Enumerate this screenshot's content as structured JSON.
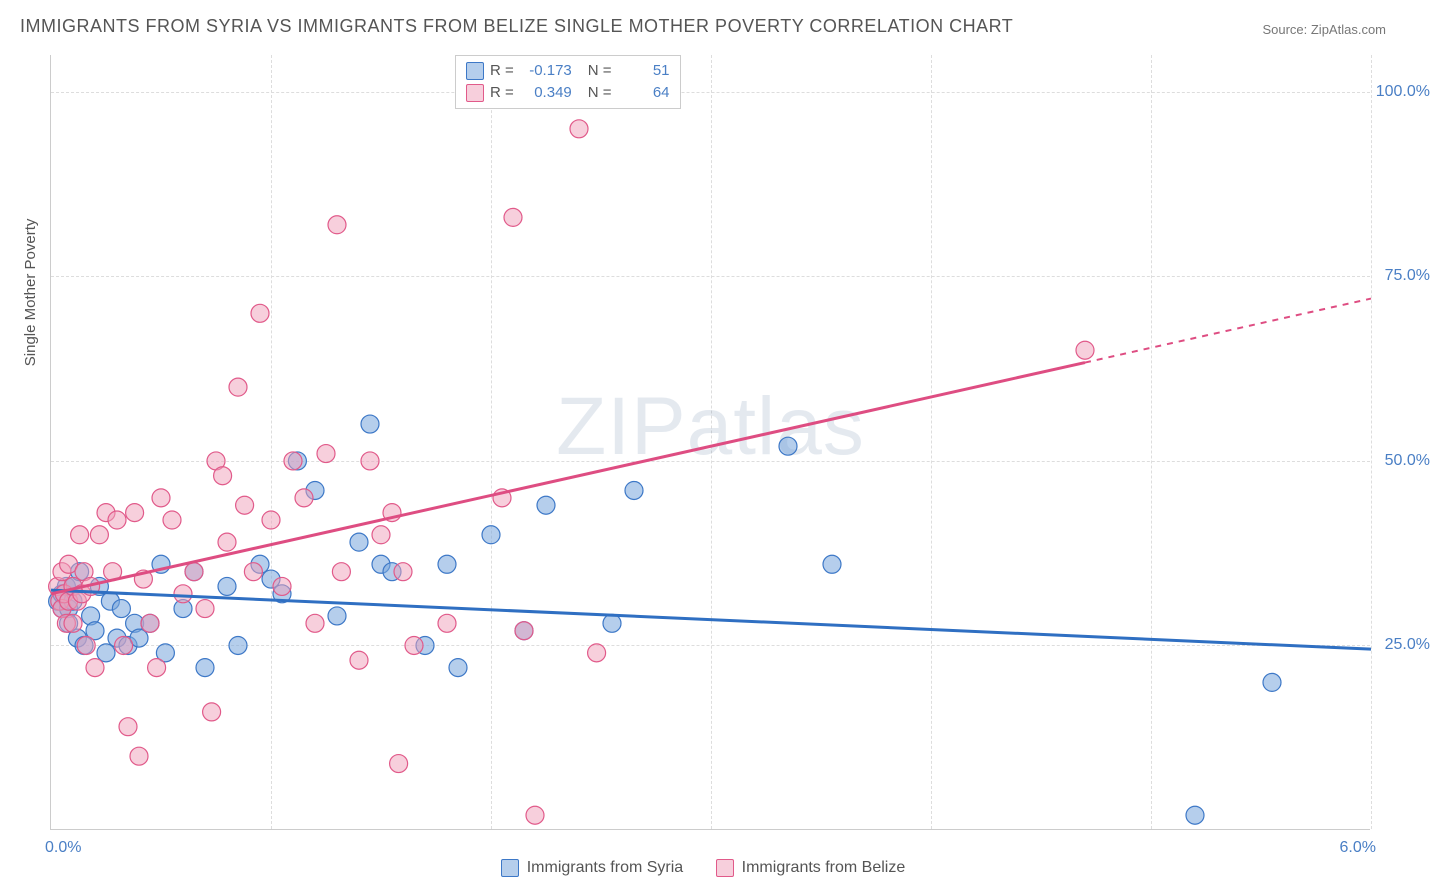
{
  "title": "IMMIGRANTS FROM SYRIA VS IMMIGRANTS FROM BELIZE SINGLE MOTHER POVERTY CORRELATION CHART",
  "source_label": "Source: ZipAtlas.com",
  "watermark": "ZIPatlas",
  "yaxis": {
    "title": "Single Mother Poverty",
    "min": 0,
    "max": 105,
    "ticks": [
      25.0,
      50.0,
      75.0,
      100.0
    ],
    "tick_labels": [
      "25.0%",
      "50.0%",
      "75.0%",
      "100.0%"
    ],
    "label_color": "#4a7fc5",
    "label_fontsize": 16
  },
  "xaxis": {
    "min": 0,
    "max": 6.0,
    "ticks": [
      0.0,
      1.0,
      2.0,
      3.0,
      4.0,
      5.0,
      6.0
    ],
    "end_labels": {
      "left": "0.0%",
      "right": "6.0%"
    },
    "label_color": "#4a7fc5",
    "label_fontsize": 16
  },
  "series": [
    {
      "name": "Immigrants from Syria",
      "color_fill": "rgba(120,165,220,0.55)",
      "color_stroke": "#3d78c7",
      "marker_radius": 9,
      "R": "-0.173",
      "N": "51",
      "trend": {
        "x1": 0.0,
        "y1": 32.5,
        "x2": 6.0,
        "y2": 24.5,
        "dash_from_x": null,
        "color": "#2f6fc2",
        "width": 3
      },
      "points": [
        [
          0.03,
          31
        ],
        [
          0.05,
          30
        ],
        [
          0.05,
          32
        ],
        [
          0.07,
          33
        ],
        [
          0.08,
          30
        ],
        [
          0.08,
          28
        ],
        [
          0.1,
          33
        ],
        [
          0.1,
          31
        ],
        [
          0.12,
          26
        ],
        [
          0.13,
          35
        ],
        [
          0.15,
          25
        ],
        [
          0.18,
          29
        ],
        [
          0.2,
          27
        ],
        [
          0.22,
          33
        ],
        [
          0.25,
          24
        ],
        [
          0.27,
          31
        ],
        [
          0.3,
          26
        ],
        [
          0.32,
          30
        ],
        [
          0.35,
          25
        ],
        [
          0.38,
          28
        ],
        [
          0.4,
          26
        ],
        [
          0.45,
          28
        ],
        [
          0.5,
          36
        ],
        [
          0.52,
          24
        ],
        [
          0.6,
          30
        ],
        [
          0.65,
          35
        ],
        [
          0.7,
          22
        ],
        [
          0.8,
          33
        ],
        [
          0.85,
          25
        ],
        [
          0.95,
          36
        ],
        [
          1.0,
          34
        ],
        [
          1.05,
          32
        ],
        [
          1.12,
          50
        ],
        [
          1.2,
          46
        ],
        [
          1.3,
          29
        ],
        [
          1.4,
          39
        ],
        [
          1.45,
          55
        ],
        [
          1.5,
          36
        ],
        [
          1.55,
          35
        ],
        [
          1.7,
          25
        ],
        [
          1.8,
          36
        ],
        [
          1.85,
          22
        ],
        [
          2.0,
          40
        ],
        [
          2.15,
          27
        ],
        [
          2.25,
          44
        ],
        [
          2.55,
          28
        ],
        [
          2.65,
          46
        ],
        [
          3.35,
          52
        ],
        [
          3.55,
          36
        ],
        [
          5.2,
          2
        ],
        [
          5.55,
          20
        ]
      ]
    },
    {
      "name": "Immigrants from Belize",
      "color_fill": "rgba(240,160,185,0.50)",
      "color_stroke": "#e15a8a",
      "marker_radius": 9,
      "R": "0.349",
      "N": "64",
      "trend": {
        "x1": 0.0,
        "y1": 32.0,
        "x2": 6.0,
        "y2": 72.0,
        "dash_from_x": 4.7,
        "color": "#de4d82",
        "width": 3
      },
      "points": [
        [
          0.03,
          33
        ],
        [
          0.04,
          31
        ],
        [
          0.05,
          30
        ],
        [
          0.05,
          35
        ],
        [
          0.06,
          32
        ],
        [
          0.07,
          28
        ],
        [
          0.08,
          31
        ],
        [
          0.08,
          36
        ],
        [
          0.1,
          33
        ],
        [
          0.1,
          28
        ],
        [
          0.12,
          31
        ],
        [
          0.13,
          40
        ],
        [
          0.14,
          32
        ],
        [
          0.15,
          35
        ],
        [
          0.16,
          25
        ],
        [
          0.18,
          33
        ],
        [
          0.2,
          22
        ],
        [
          0.22,
          40
        ],
        [
          0.25,
          43
        ],
        [
          0.28,
          35
        ],
        [
          0.3,
          42
        ],
        [
          0.33,
          25
        ],
        [
          0.35,
          14
        ],
        [
          0.38,
          43
        ],
        [
          0.4,
          10
        ],
        [
          0.42,
          34
        ],
        [
          0.45,
          28
        ],
        [
          0.48,
          22
        ],
        [
          0.5,
          45
        ],
        [
          0.55,
          42
        ],
        [
          0.6,
          32
        ],
        [
          0.65,
          35
        ],
        [
          0.7,
          30
        ],
        [
          0.73,
          16
        ],
        [
          0.75,
          50
        ],
        [
          0.78,
          48
        ],
        [
          0.8,
          39
        ],
        [
          0.85,
          60
        ],
        [
          0.88,
          44
        ],
        [
          0.92,
          35
        ],
        [
          0.95,
          70
        ],
        [
          1.0,
          42
        ],
        [
          1.05,
          33
        ],
        [
          1.1,
          50
        ],
        [
          1.15,
          45
        ],
        [
          1.2,
          28
        ],
        [
          1.25,
          51
        ],
        [
          1.3,
          82
        ],
        [
          1.32,
          35
        ],
        [
          1.4,
          23
        ],
        [
          1.45,
          50
        ],
        [
          1.5,
          40
        ],
        [
          1.55,
          43
        ],
        [
          1.58,
          9
        ],
        [
          1.6,
          35
        ],
        [
          1.65,
          25
        ],
        [
          1.8,
          28
        ],
        [
          2.05,
          45
        ],
        [
          2.1,
          83
        ],
        [
          2.15,
          27
        ],
        [
          2.2,
          2
        ],
        [
          2.4,
          95
        ],
        [
          2.48,
          24
        ],
        [
          4.7,
          65
        ]
      ]
    }
  ],
  "legend_bottom": [
    {
      "swatch_fill": "rgba(120,165,220,0.55)",
      "swatch_stroke": "#3d78c7",
      "label": "Immigrants from Syria"
    },
    {
      "swatch_fill": "rgba(240,160,185,0.50)",
      "swatch_stroke": "#e15a8a",
      "label": "Immigrants from Belize"
    }
  ],
  "legend_top_swatches": [
    {
      "fill": "rgba(120,165,220,0.55)",
      "stroke": "#3d78c7"
    },
    {
      "fill": "rgba(240,160,185,0.50)",
      "stroke": "#e15a8a"
    }
  ],
  "style": {
    "background_color": "#ffffff",
    "grid_color": "#dddddd",
    "title_color": "#555555",
    "title_fontsize": 18,
    "source_color": "#777777",
    "value_color": "#4a7fc5",
    "watermark_color": "#5e7ca3",
    "watermark_opacity": 0.16,
    "watermark_fontsize": 82
  }
}
